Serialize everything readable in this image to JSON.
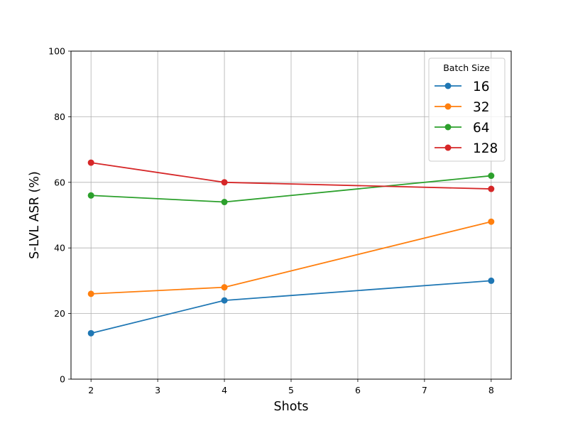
{
  "chart_data": {
    "type": "line",
    "title": "",
    "xlabel": "Shots",
    "ylabel": "S-LVL ASR (%)",
    "xlim": [
      1.7,
      8.3
    ],
    "ylim": [
      0,
      100
    ],
    "x_ticks": [
      "2",
      "3",
      "4",
      "5",
      "6",
      "7",
      "8"
    ],
    "y_ticks": [
      "0",
      "20",
      "40",
      "60",
      "80",
      "100"
    ],
    "grid": true,
    "legend": {
      "title": "Batch Size",
      "placement": "top-right"
    },
    "x": [
      2,
      4,
      8
    ],
    "series": [
      {
        "name": "16",
        "color": "#1f77b4",
        "values": [
          14,
          24,
          30
        ]
      },
      {
        "name": "32",
        "color": "#ff7f0e",
        "values": [
          26,
          28,
          48
        ]
      },
      {
        "name": "64",
        "color": "#2ca02c",
        "values": [
          56,
          54,
          62
        ]
      },
      {
        "name": "128",
        "color": "#d62728",
        "values": [
          66,
          60,
          58
        ]
      }
    ]
  }
}
